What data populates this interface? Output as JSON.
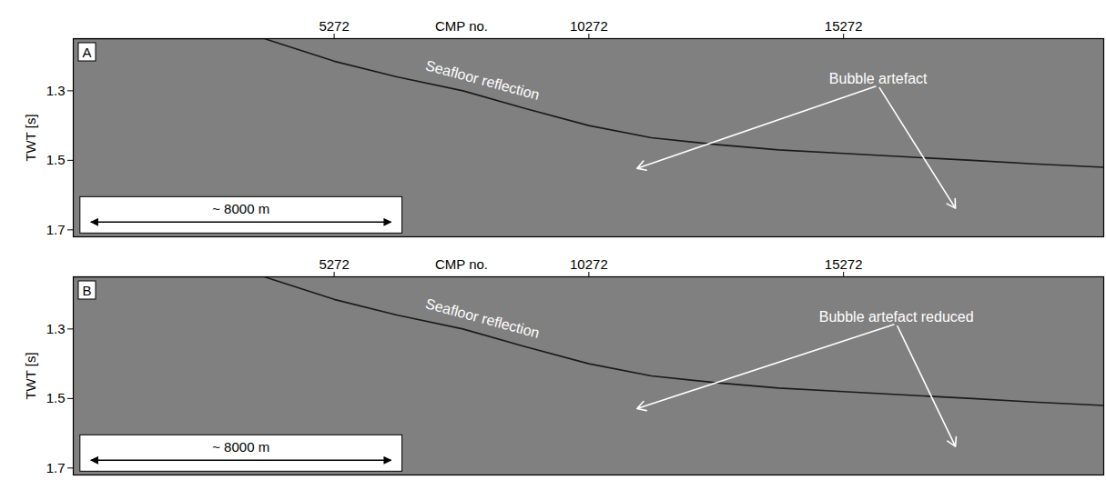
{
  "chart_data": [
    {
      "type": "line",
      "panel": "A",
      "xlabel": "CMP no.",
      "ylabel": "TWT [s]",
      "xlim": [
        150,
        20380
      ],
      "xticks": [
        5272,
        10272,
        15272
      ],
      "ylim": [
        1.15,
        1.72
      ],
      "yticks": [
        1.3,
        1.5,
        1.7
      ],
      "x": [
        150,
        3900,
        5272,
        6500,
        7800,
        9000,
        10272,
        11500,
        12800,
        14000,
        15272,
        16500,
        17800,
        19000,
        20380
      ],
      "series": [
        {
          "color": "#1a1a1a",
          "values": [
            1.15,
            1.15,
            1.215,
            1.26,
            1.3,
            1.35,
            1.4,
            1.435,
            1.455,
            1.47,
            1.48,
            1.49,
            1.5,
            1.51,
            1.52
          ]
        }
      ],
      "annotations": [
        {
          "text": "Seafloor reflection",
          "x": 8183,
          "y": 1.27
        },
        {
          "text": "Bubble artefact",
          "x": 15951,
          "y": 1.285,
          "arrows": [
            {
              "x": 11218,
              "y": 1.523
            },
            {
              "x": 17469,
              "y": 1.638
            }
          ]
        }
      ],
      "scale_bar": {
        "label": "~ 8000 m",
        "x": [
          504,
          6397
        ],
        "y": 1.679
      }
    },
    {
      "type": "line",
      "panel": "B",
      "xlabel": "CMP no.",
      "ylabel": "TWT [s]",
      "xlim": [
        150,
        20380
      ],
      "xticks": [
        5272,
        10272,
        15272
      ],
      "ylim": [
        1.15,
        1.72
      ],
      "yticks": [
        1.3,
        1.5,
        1.7
      ],
      "x": [
        150,
        3900,
        5272,
        6500,
        7800,
        9000,
        10272,
        11500,
        12800,
        14000,
        15272,
        16500,
        17800,
        19000,
        20380
      ],
      "series": [
        {
          "color": "#1a1a1a",
          "values": [
            1.15,
            1.15,
            1.215,
            1.26,
            1.3,
            1.35,
            1.4,
            1.435,
            1.455,
            1.47,
            1.48,
            1.49,
            1.5,
            1.51,
            1.52
          ]
        }
      ],
      "annotations": [
        {
          "text": "Seafloor reflection",
          "x": 8183,
          "y": 1.27
        },
        {
          "text": "Bubble artefact reduced",
          "x": 16308,
          "y": 1.285,
          "arrows": [
            {
              "x": 11218,
              "y": 1.529
            },
            {
              "x": 17469,
              "y": 1.638
            }
          ]
        }
      ],
      "scale_bar": {
        "label": "~ 8000 m",
        "x": [
          504,
          6397
        ],
        "y": 1.679
      }
    }
  ]
}
